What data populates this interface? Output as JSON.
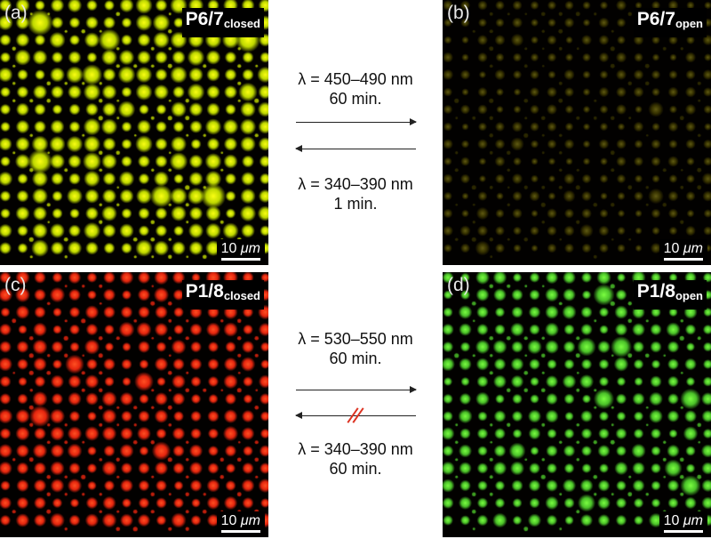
{
  "panels": {
    "a": {
      "label": "(a)",
      "sample": "P6/7",
      "state": "closed",
      "scale": "10",
      "unit": "μm",
      "dot_color": "#d4f000"
    },
    "b": {
      "label": "(b)",
      "sample": "P6/7",
      "state": "open",
      "scale": "10",
      "unit": "μm",
      "dot_color": "#3a3500"
    },
    "c": {
      "label": "(c)",
      "sample": "P1/8",
      "state": "closed",
      "scale": "10",
      "unit": "μm",
      "dot_color": "#ff2a10"
    },
    "d": {
      "label": "(d)",
      "sample": "P1/8",
      "state": "open",
      "scale": "10",
      "unit": "μm",
      "dot_color": "#54d82e"
    }
  },
  "top_conditions": {
    "forward_wavelength": "λ = 450–490 nm",
    "forward_time": "60 min.",
    "reverse_wavelength": "λ = 340–390 nm",
    "reverse_time": "1 min."
  },
  "bottom_conditions": {
    "forward_wavelength": "λ = 530–550 nm",
    "forward_time": "60 min.",
    "reverse_wavelength": "λ = 340–390 nm",
    "reverse_time": "60 min."
  },
  "colors": {
    "arrow": "#222222",
    "blocked_mark": "#d32f20",
    "background": "#020100"
  }
}
